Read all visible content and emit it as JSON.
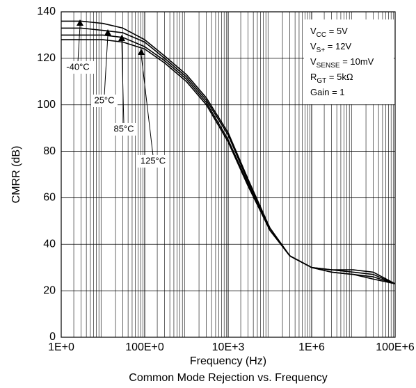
{
  "chart_data": {
    "type": "line",
    "title": "Common Mode Rejection vs. Frequency",
    "x_label": "Frequency (Hz)",
    "y_label": "CMRR (dB)",
    "x_scale": "log",
    "grid": true,
    "xlim": [
      1,
      100000000
    ],
    "ylim": [
      0,
      140
    ],
    "xticks": [
      {
        "value": 1,
        "label": "1E+0"
      },
      {
        "value": 100,
        "label": "100E+0"
      },
      {
        "value": 10000,
        "label": "10E+3"
      },
      {
        "value": 1000000,
        "label": "1E+6"
      },
      {
        "value": 100000000,
        "label": "100E+6"
      }
    ],
    "yticks": [
      0,
      20,
      40,
      60,
      80,
      100,
      120,
      140
    ],
    "x": [
      1,
      3,
      10,
      30,
      100,
      300,
      1000,
      3000,
      10000,
      30000,
      100000,
      300000,
      1000000,
      3000000,
      10000000,
      30000000,
      100000000
    ],
    "series": [
      {
        "name": "-40°C",
        "color": "#000000",
        "values": [
          136,
          136,
          135,
          133,
          128,
          121,
          113,
          103,
          88,
          68,
          47,
          35,
          30,
          29,
          29,
          28,
          23
        ]
      },
      {
        "name": "25°C",
        "color": "#000000",
        "values": [
          133,
          133,
          132,
          131,
          127,
          120,
          112,
          102,
          87,
          67,
          47,
          35,
          30,
          29,
          28,
          27,
          23
        ]
      },
      {
        "name": "85°C",
        "color": "#000000",
        "values": [
          130,
          130,
          130,
          129,
          125,
          119,
          111,
          101,
          85,
          66,
          46,
          35,
          30,
          28,
          27,
          26,
          23
        ]
      },
      {
        "name": "125°C",
        "color": "#000000",
        "values": [
          128,
          128,
          128,
          127,
          124,
          118,
          110,
          100,
          84,
          65,
          46,
          35,
          30,
          28,
          27,
          25,
          23
        ]
      }
    ],
    "conditions": [
      {
        "main": "V",
        "sub": "CC",
        "rest": " = 5V"
      },
      {
        "main": "V",
        "sub": "S+",
        "rest": " = 12V"
      },
      {
        "main": "V",
        "sub": "SENSE",
        "rest": " = 10mV"
      },
      {
        "main": "R",
        "sub": "GT",
        "rest": " = 5kΩ"
      },
      {
        "main": "Gain = 1"
      }
    ]
  }
}
